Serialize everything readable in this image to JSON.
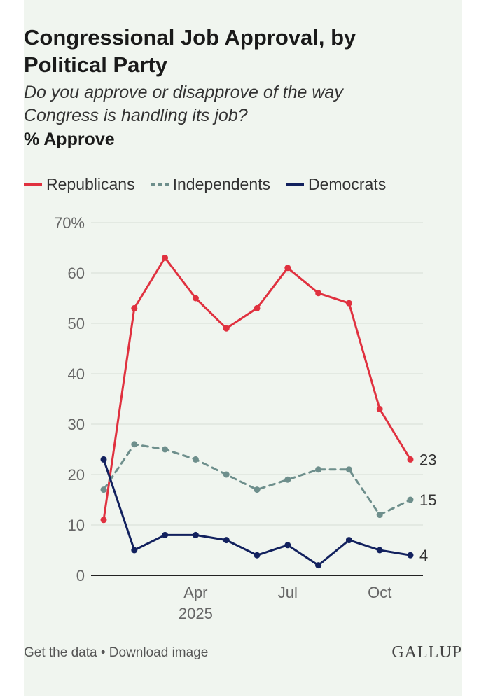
{
  "title": "Congressional Job Approval, by Political Party",
  "subtitle": "Do you approve or disapprove of the way Congress is handling its job?",
  "measure": "% Approve",
  "footer": {
    "get_data": "Get the data",
    "separator": "•",
    "download": "Download image",
    "brand": "GALLUP"
  },
  "colors": {
    "republicans": "#e0313f",
    "independents": "#6e8f8c",
    "democrats": "#12215e",
    "background": "#f0f5ef",
    "grid": "#d6ddd6"
  },
  "chart_data": {
    "type": "line",
    "x": [
      "2025-01",
      "2025-02",
      "2025-03",
      "2025-04",
      "2025-05",
      "2025-06",
      "2025-07",
      "2025-08",
      "2025-09",
      "2025-10",
      "2025-11"
    ],
    "x_ticks": [
      {
        "x": "2025-04",
        "label": "Apr",
        "sublabel": "2025"
      },
      {
        "x": "2025-07",
        "label": "Jul",
        "sublabel": ""
      },
      {
        "x": "2025-10",
        "label": "Oct",
        "sublabel": ""
      }
    ],
    "y_ticks": [
      "0",
      "10",
      "20",
      "30",
      "40",
      "50",
      "60",
      "70%"
    ],
    "ylim": [
      0,
      70
    ],
    "grid": true,
    "legend_position": "top",
    "series": [
      {
        "name": "Republicans",
        "key": "republicans",
        "style": "solid",
        "values": [
          11,
          53,
          63,
          55,
          49,
          53,
          61,
          56,
          54,
          33,
          23
        ],
        "end_label": "23"
      },
      {
        "name": "Independents",
        "key": "independents",
        "style": "dashed",
        "values": [
          17,
          26,
          25,
          23,
          20,
          17,
          19,
          21,
          21,
          12,
          15
        ],
        "end_label": "15"
      },
      {
        "name": "Democrats",
        "key": "democrats",
        "style": "solid",
        "values": [
          23,
          5,
          8,
          8,
          7,
          4,
          6,
          2,
          7,
          5,
          4
        ],
        "end_label": "4"
      }
    ]
  }
}
